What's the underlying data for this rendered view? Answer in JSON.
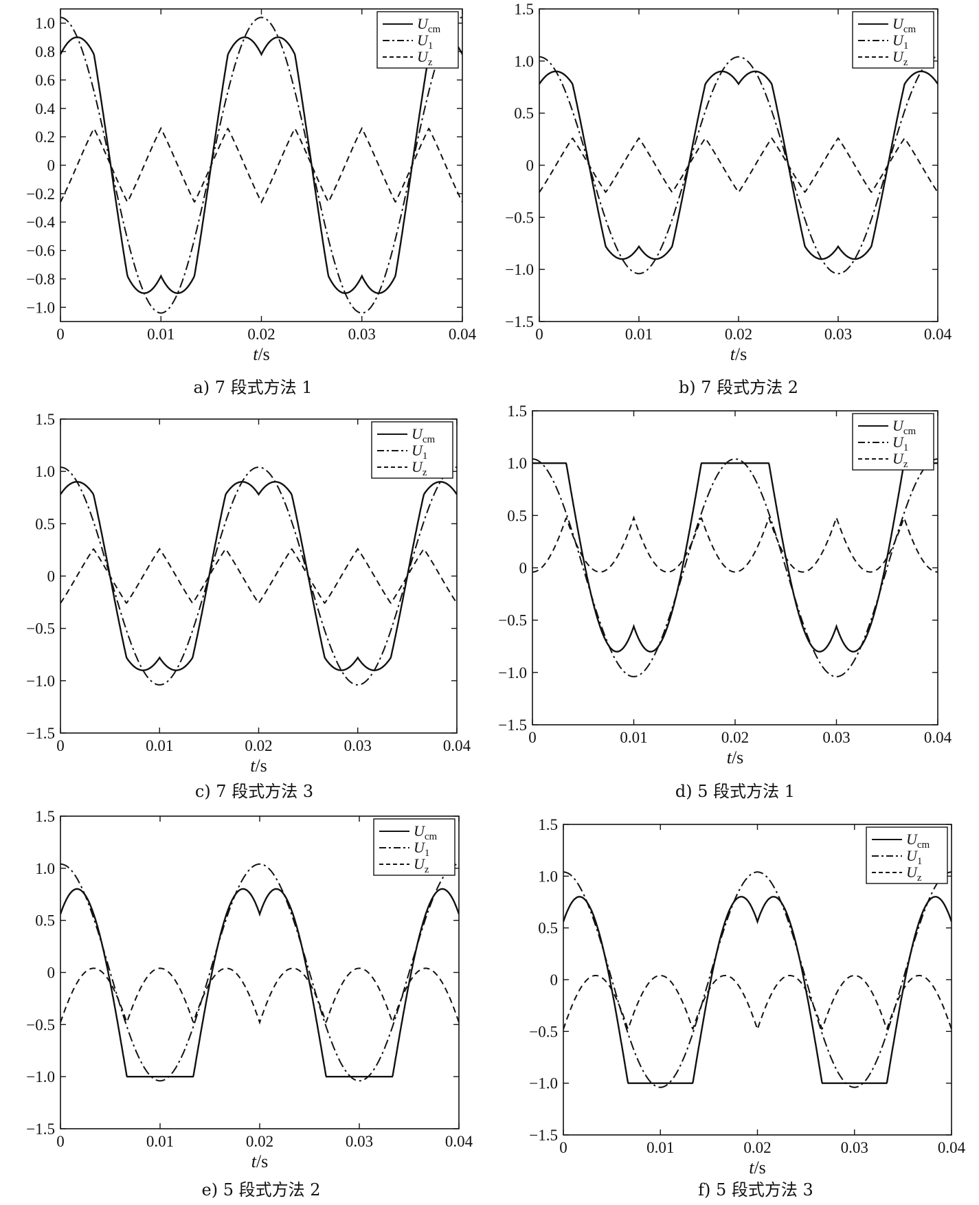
{
  "chart_data": [
    {
      "id": "a",
      "type": "line",
      "caption": "a)  7 段式方法 1",
      "xlabel_var": "t",
      "xlabel_unit": "/s",
      "xlim": [
        0,
        0.04
      ],
      "ylim": [
        -1.1,
        1.1
      ],
      "x_ticks": [
        "0",
        "0.01",
        "0.02",
        "0.03",
        "0.04"
      ],
      "y_ticks": [
        {
          "v": 1.0,
          "label": "1.0"
        },
        {
          "v": 0.8,
          "label": "0.8"
        },
        {
          "v": 0.6,
          "label": "0.6"
        },
        {
          "v": 0.4,
          "label": "0.4"
        },
        {
          "v": 0.2,
          "label": "0.2"
        },
        {
          "v": 0,
          "label": "0"
        },
        {
          "v": -0.2,
          "label": "−0.2"
        },
        {
          "v": -0.4,
          "label": "−0.4"
        },
        {
          "v": -0.6,
          "label": "−0.6"
        },
        {
          "v": -0.8,
          "label": "−0.8"
        },
        {
          "v": -1.0,
          "label": "−1.0"
        }
      ],
      "method": "svpwm7",
      "amplitude": 1.04,
      "series": [
        {
          "name": "U",
          "sub": "cm",
          "style": "solid"
        },
        {
          "name": "U",
          "sub": "1",
          "style": "dashdot"
        },
        {
          "name": "U",
          "sub": "z",
          "style": "dashed"
        }
      ],
      "legend_position": "top-right"
    },
    {
      "id": "b",
      "type": "line",
      "caption": "b)  7 段式方法 2",
      "xlabel_var": "t",
      "xlabel_unit": "/s",
      "xlim": [
        0,
        0.04
      ],
      "ylim": [
        -1.5,
        1.5
      ],
      "x_ticks": [
        "0",
        "0.01",
        "0.02",
        "0.03",
        "0.04"
      ],
      "y_ticks": [
        {
          "v": 1.5,
          "label": "1.5"
        },
        {
          "v": 1.0,
          "label": "1.0"
        },
        {
          "v": 0.5,
          "label": "0.5"
        },
        {
          "v": 0,
          "label": "0"
        },
        {
          "v": -0.5,
          "label": "−0.5"
        },
        {
          "v": -1.0,
          "label": "−1.0"
        },
        {
          "v": -1.5,
          "label": "−1.5"
        }
      ],
      "method": "svpwm7",
      "amplitude": 1.04,
      "series": [
        {
          "name": "U",
          "sub": "cm",
          "style": "solid"
        },
        {
          "name": "U",
          "sub": "1",
          "style": "dashdot"
        },
        {
          "name": "U",
          "sub": "z",
          "style": "dashed"
        }
      ],
      "legend_position": "top-right"
    },
    {
      "id": "c",
      "type": "line",
      "caption": "c)  7 段式方法 3",
      "xlabel_var": "t",
      "xlabel_unit": "/s",
      "xlim": [
        0,
        0.04
      ],
      "ylim": [
        -1.5,
        1.5
      ],
      "x_ticks": [
        "0",
        "0.01",
        "0.02",
        "0.03",
        "0.04"
      ],
      "y_ticks": [
        {
          "v": 1.5,
          "label": "1.5"
        },
        {
          "v": 1.0,
          "label": "1.0"
        },
        {
          "v": 0.5,
          "label": "0.5"
        },
        {
          "v": 0,
          "label": "0"
        },
        {
          "v": -0.5,
          "label": "−0.5"
        },
        {
          "v": -1.0,
          "label": "−1.0"
        },
        {
          "v": -1.5,
          "label": "−1.5"
        }
      ],
      "method": "svpwm7",
      "amplitude": 1.04,
      "series": [
        {
          "name": "U",
          "sub": "cm",
          "style": "solid"
        },
        {
          "name": "U",
          "sub": "1",
          "style": "dashdot"
        },
        {
          "name": "U",
          "sub": "z",
          "style": "dashed"
        }
      ],
      "legend_position": "top-right"
    },
    {
      "id": "d",
      "type": "line",
      "caption": "d)  5 段式方法 1",
      "xlabel_var": "t",
      "xlabel_unit": "/s",
      "xlim": [
        0,
        0.04
      ],
      "ylim": [
        -1.5,
        1.5
      ],
      "x_ticks": [
        "0",
        "0.01",
        "0.02",
        "0.03",
        "0.04"
      ],
      "y_ticks": [
        {
          "v": 1.5,
          "label": "1.5"
        },
        {
          "v": 1.0,
          "label": "1.0"
        },
        {
          "v": 0.5,
          "label": "0.5"
        },
        {
          "v": 0,
          "label": "0"
        },
        {
          "v": -0.5,
          "label": "−0.5"
        },
        {
          "v": -1.0,
          "label": "−1.0"
        },
        {
          "v": -1.5,
          "label": "−1.5"
        }
      ],
      "method": "dpwm_top",
      "amplitude": 1.04,
      "series": [
        {
          "name": "U",
          "sub": "cm",
          "style": "solid"
        },
        {
          "name": "U",
          "sub": "1",
          "style": "dashdot"
        },
        {
          "name": "U",
          "sub": "z",
          "style": "dashed"
        }
      ],
      "legend_position": "top-right"
    },
    {
      "id": "e",
      "type": "line",
      "caption": "e) 5 段式方法 2",
      "xlabel_var": "t",
      "xlabel_unit": "/s",
      "xlim": [
        0,
        0.04
      ],
      "ylim": [
        -1.5,
        1.5
      ],
      "x_ticks": [
        "0",
        "0.01",
        "0.02",
        "0.03",
        "0.04"
      ],
      "y_ticks": [
        {
          "v": 1.5,
          "label": "1.5"
        },
        {
          "v": 1.0,
          "label": "1.0"
        },
        {
          "v": 0.5,
          "label": "0.5"
        },
        {
          "v": 0,
          "label": "0"
        },
        {
          "v": -0.5,
          "label": "−0.5"
        },
        {
          "v": -1.0,
          "label": "−1.0"
        },
        {
          "v": -1.5,
          "label": "−1.5"
        }
      ],
      "method": "dpwm_bottom",
      "amplitude": 1.04,
      "series": [
        {
          "name": "U",
          "sub": "cm",
          "style": "solid"
        },
        {
          "name": "U",
          "sub": "1",
          "style": "dashdot"
        },
        {
          "name": "U",
          "sub": "z",
          "style": "dashed"
        }
      ],
      "legend_position": "top-right"
    },
    {
      "id": "f",
      "type": "line",
      "caption": "f)  5 段式方法 3",
      "xlabel_var": "t",
      "xlabel_unit": "/s",
      "xlim": [
        0,
        0.04
      ],
      "ylim": [
        -1.5,
        1.5
      ],
      "x_ticks": [
        "0",
        "0.01",
        "0.02",
        "0.03",
        "0.04"
      ],
      "y_ticks": [
        {
          "v": 1.5,
          "label": "1.5"
        },
        {
          "v": 1.0,
          "label": "1.0"
        },
        {
          "v": 0.5,
          "label": "0.5"
        },
        {
          "v": 0,
          "label": "0"
        },
        {
          "v": -0.5,
          "label": "−0.5"
        },
        {
          "v": -1.0,
          "label": "−1.0"
        },
        {
          "v": -1.5,
          "label": "−1.5"
        }
      ],
      "method": "dpwm_bottom",
      "amplitude": 1.04,
      "series": [
        {
          "name": "U",
          "sub": "cm",
          "style": "solid"
        },
        {
          "name": "U",
          "sub": "1",
          "style": "dashdot"
        },
        {
          "name": "U",
          "sub": "z",
          "style": "dashed"
        }
      ],
      "legend_position": "top-right"
    }
  ]
}
